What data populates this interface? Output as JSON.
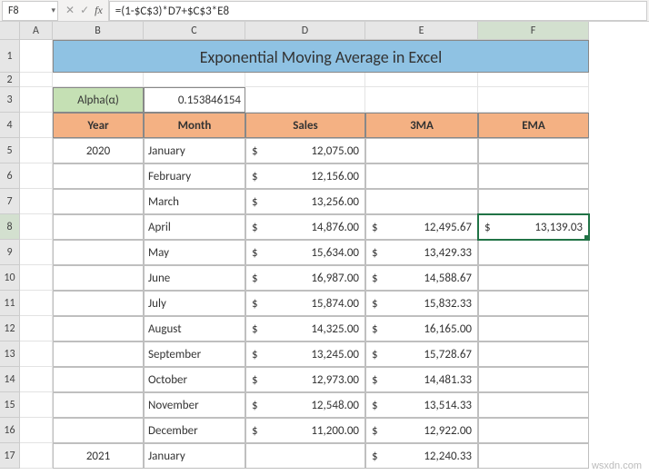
{
  "nameBox": "F8",
  "formula": "=(1-$C$3)*D7+$C$3*E8",
  "title": "Exponential Moving Average in Excel",
  "alphaLabel": "Alpha(α)",
  "alphaValue": "0.153846154",
  "columns": [
    "A",
    "B",
    "C",
    "D",
    "E",
    "F"
  ],
  "headers": {
    "B": "Year",
    "C": "Month",
    "D": "Sales",
    "E": "3MA",
    "F": "EMA"
  },
  "rows": [
    {
      "n": 5,
      "year": "2020",
      "month": "January",
      "sales": "12,075.00",
      "ma": "",
      "ema": ""
    },
    {
      "n": 6,
      "year": "",
      "month": "February",
      "sales": "12,156.00",
      "ma": "",
      "ema": ""
    },
    {
      "n": 7,
      "year": "",
      "month": "March",
      "sales": "13,256.00",
      "ma": "",
      "ema": ""
    },
    {
      "n": 8,
      "year": "",
      "month": "April",
      "sales": "14,876.00",
      "ma": "12,495.67",
      "ema": "13,139.03"
    },
    {
      "n": 9,
      "year": "",
      "month": "May",
      "sales": "15,634.00",
      "ma": "13,429.33",
      "ema": ""
    },
    {
      "n": 10,
      "year": "",
      "month": "June",
      "sales": "16,987.00",
      "ma": "14,588.67",
      "ema": ""
    },
    {
      "n": 11,
      "year": "",
      "month": "July",
      "sales": "15,874.00",
      "ma": "15,832.33",
      "ema": ""
    },
    {
      "n": 12,
      "year": "",
      "month": "August",
      "sales": "14,325.00",
      "ma": "16,165.00",
      "ema": ""
    },
    {
      "n": 13,
      "year": "",
      "month": "September",
      "sales": "13,245.00",
      "ma": "15,728.67",
      "ema": ""
    },
    {
      "n": 14,
      "year": "",
      "month": "October",
      "sales": "12,973.00",
      "ma": "14,481.33",
      "ema": ""
    },
    {
      "n": 15,
      "year": "",
      "month": "November",
      "sales": "12,548.00",
      "ma": "13,514.33",
      "ema": ""
    },
    {
      "n": 16,
      "year": "",
      "month": "December",
      "sales": "11,200.00",
      "ma": "12,922.00",
      "ema": ""
    },
    {
      "n": 17,
      "year": "2021",
      "month": "January",
      "sales": "",
      "ma": "12,240.33",
      "ema": ""
    }
  ],
  "watermark": "wsxdn.com",
  "selectedRow": 8,
  "selectedCol": "F"
}
